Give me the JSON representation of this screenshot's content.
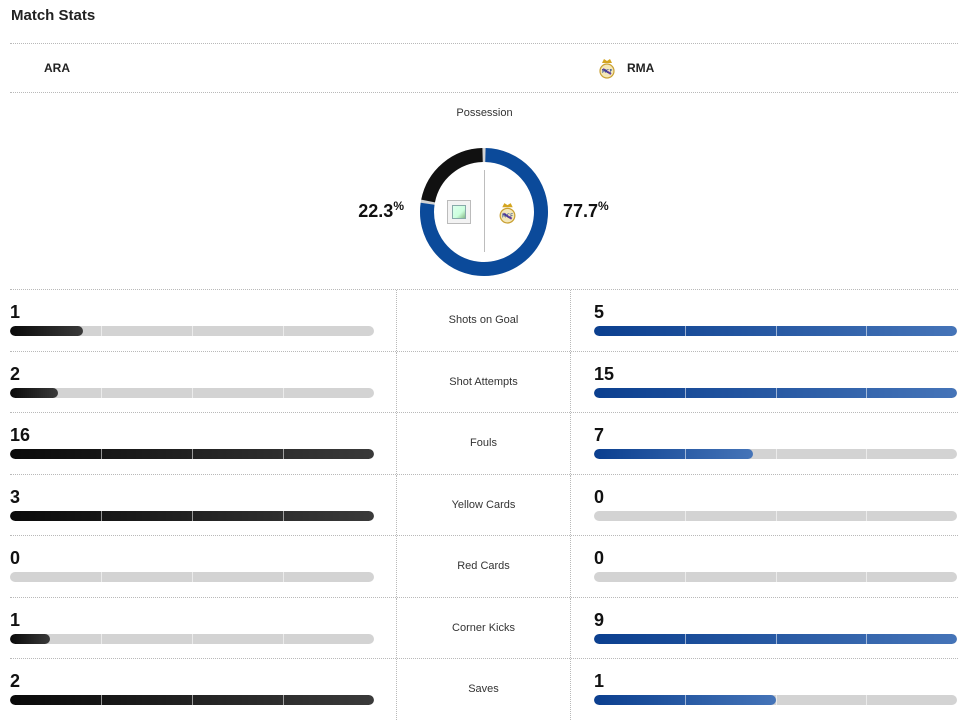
{
  "header": {
    "title": "Match Stats"
  },
  "teams": {
    "home": {
      "abbr": "ARA",
      "logo_icon": "broken-image-icon"
    },
    "away": {
      "abbr": "RMA",
      "logo_icon": "real-madrid-crest-icon"
    }
  },
  "possession": {
    "label": "Possession",
    "home_value": "22.3",
    "away_value": "77.7",
    "unit": "%",
    "home_fraction": 0.223,
    "away_fraction": 0.777
  },
  "colors": {
    "home": "#111111",
    "away": "#0b4a9a",
    "empty": "#d3d3d3"
  },
  "stats": [
    {
      "label": "Shots on Goal",
      "home": "1",
      "away": "5",
      "home_fill": 0.2,
      "away_fill": 1.0
    },
    {
      "label": "Shot Attempts",
      "home": "2",
      "away": "15",
      "home_fill": 0.133,
      "away_fill": 1.0
    },
    {
      "label": "Fouls",
      "home": "16",
      "away": "7",
      "home_fill": 1.0,
      "away_fill": 0.4375
    },
    {
      "label": "Yellow Cards",
      "home": "3",
      "away": "0",
      "home_fill": 1.0,
      "away_fill": 0.0
    },
    {
      "label": "Red Cards",
      "home": "0",
      "away": "0",
      "home_fill": 0.0,
      "away_fill": 0.0
    },
    {
      "label": "Corner Kicks",
      "home": "1",
      "away": "9",
      "home_fill": 0.111,
      "away_fill": 1.0
    },
    {
      "label": "Saves",
      "home": "2",
      "away": "1",
      "home_fill": 1.0,
      "away_fill": 0.5
    }
  ]
}
